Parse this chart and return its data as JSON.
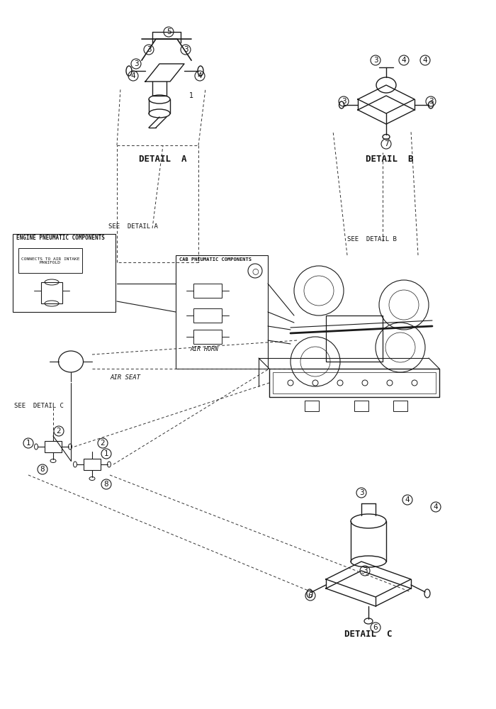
{
  "title": "",
  "bg_color": "#ffffff",
  "line_color": "#1a1a1a",
  "dashed_color": "#333333",
  "text_color": "#111111",
  "detail_a_label": "DETAIL  A",
  "detail_b_label": "DETAIL  B",
  "detail_c_label": "DETAIL  C",
  "see_detail_a": "SEE  DETAIL A",
  "see_detail_b": "SEE  DETAIL B",
  "see_detail_c": "SEE  DETAIL C",
  "engine_label": "ENGINE PNEUMATIC COMPONENTS",
  "cab_label": "CAB PNEUMATIC COMPONENTS",
  "connect_label": "CONNECTS TO AIR INTAKE\nMANIFOLD",
  "air_horn_label": "AIR HORN",
  "air_seat_label": "AIR SEAT"
}
